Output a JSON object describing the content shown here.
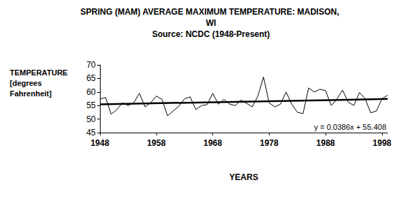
{
  "chart_data": {
    "type": "line",
    "title": "SPRING (MAM) AVERAGE MAXIMUM TEMPERATURE: MADISON, WI",
    "subtitle": "Source: NCDC (1948-Present)",
    "xlabel": "YEARS",
    "ylabel": "TEMPERATURE [degrees Fahrenheit]",
    "x": [
      1948,
      1949,
      1950,
      1951,
      1952,
      1953,
      1954,
      1955,
      1956,
      1957,
      1958,
      1959,
      1960,
      1961,
      1962,
      1963,
      1964,
      1965,
      1966,
      1967,
      1968,
      1969,
      1970,
      1971,
      1972,
      1973,
      1974,
      1975,
      1976,
      1977,
      1978,
      1979,
      1980,
      1981,
      1982,
      1983,
      1984,
      1985,
      1986,
      1987,
      1988,
      1989,
      1990,
      1991,
      1992,
      1993,
      1994,
      1995,
      1996,
      1997,
      1998,
      1999
    ],
    "values": [
      57.3,
      58,
      51.8,
      53.5,
      56,
      55,
      56,
      59.5,
      54.5,
      56,
      58.5,
      57.3,
      51.2,
      53,
      54.8,
      57.5,
      58.2,
      53.5,
      55,
      55.3,
      59.5,
      55.5,
      57.3,
      55.5,
      55,
      57,
      55.8,
      54.5,
      58.5,
      65.5,
      56,
      54.5,
      55.5,
      60,
      55.5,
      52.5,
      52,
      61.5,
      60,
      61,
      60.5,
      55,
      57.3,
      60.7,
      56.3,
      55,
      59.8,
      57.5,
      52.3,
      53,
      57.5,
      58.8
    ],
    "color": "#000000",
    "trendline": {
      "x": [
        1948,
        1999
      ],
      "values": [
        55.45,
        57.42
      ],
      "color": "#000000",
      "label": "y = 0.0386x + 55.408"
    },
    "xlim": [
      1948,
      1999
    ],
    "xticks": [
      1948,
      1958,
      1968,
      1978,
      1988,
      1998
    ],
    "ylim": [
      45,
      70
    ],
    "yticks": [
      45,
      50,
      55,
      60,
      65,
      70
    ],
    "grid": false
  }
}
